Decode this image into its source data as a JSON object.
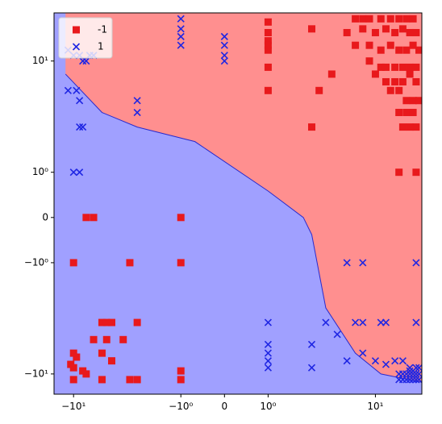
{
  "chart_data": {
    "type": "scatter",
    "subtype": "classifier-decision-regions",
    "xscale": "symlog",
    "yscale": "symlog",
    "xlim": [
      -14,
      22
    ],
    "ylim": [
      -14,
      22
    ],
    "xticks": [
      {
        "value": -10,
        "label": "−10¹"
      },
      {
        "value": -1,
        "label": "−10⁰"
      },
      {
        "value": 0,
        "label": "0"
      },
      {
        "value": 1,
        "label": "10⁰"
      },
      {
        "value": 10,
        "label": "10¹"
      }
    ],
    "yticks": [
      {
        "value": -10,
        "label": "−10¹"
      },
      {
        "value": -1,
        "label": "−10⁰"
      },
      {
        "value": 0,
        "label": "0"
      },
      {
        "value": 1,
        "label": "10⁰"
      },
      {
        "value": 10,
        "label": "10¹"
      }
    ],
    "regions": [
      {
        "class": "-1",
        "color": "#ff8f8f"
      },
      {
        "class": "1",
        "color": "#a0a0ff"
      }
    ],
    "decision_boundary": [
      [
        -11.5,
        8
      ],
      [
        -6,
        4
      ],
      [
        -3,
        3
      ],
      [
        -0.6,
        2.2
      ],
      [
        1,
        0.5
      ],
      [
        2.5,
        0
      ],
      [
        3,
        -0.3
      ],
      [
        4,
        -3
      ],
      [
        7,
        -7
      ],
      [
        11,
        -10
      ],
      [
        22,
        -11.5
      ]
    ],
    "legend": {
      "location": "upper-left",
      "entries": [
        {
          "label": "-1",
          "marker": "square",
          "color": "#e8191c"
        },
        {
          "label": "1",
          "marker": "x",
          "color": "#1f26e3"
        }
      ]
    },
    "series": [
      {
        "name": "-1",
        "marker": "square",
        "color": "#e8191c",
        "points": [
          [
            1,
            19
          ],
          [
            1,
            16
          ],
          [
            1,
            14
          ],
          [
            1,
            13
          ],
          [
            1,
            12
          ],
          [
            1,
            9
          ],
          [
            1,
            6
          ],
          [
            3,
            17
          ],
          [
            3,
            3
          ],
          [
            3.5,
            6
          ],
          [
            4.5,
            8
          ],
          [
            7,
            20
          ],
          [
            8,
            20
          ],
          [
            9,
            20
          ],
          [
            11,
            20
          ],
          [
            13,
            20
          ],
          [
            15,
            20
          ],
          [
            17,
            20
          ],
          [
            19,
            20
          ],
          [
            6,
            16
          ],
          [
            8,
            17
          ],
          [
            10,
            16
          ],
          [
            12,
            17
          ],
          [
            14,
            16
          ],
          [
            16,
            17
          ],
          [
            18,
            16
          ],
          [
            20,
            16
          ],
          [
            7,
            13
          ],
          [
            9,
            13
          ],
          [
            11,
            12
          ],
          [
            13,
            13
          ],
          [
            15,
            12
          ],
          [
            17,
            12
          ],
          [
            19,
            13
          ],
          [
            21,
            12
          ],
          [
            9,
            10
          ],
          [
            11,
            9
          ],
          [
            12,
            9
          ],
          [
            14,
            9
          ],
          [
            16,
            9
          ],
          [
            18,
            9
          ],
          [
            20,
            9
          ],
          [
            10,
            8
          ],
          [
            12,
            7
          ],
          [
            14,
            7
          ],
          [
            16,
            7
          ],
          [
            18,
            8
          ],
          [
            20,
            7
          ],
          [
            13,
            6
          ],
          [
            15,
            6
          ],
          [
            17,
            5
          ],
          [
            19,
            5
          ],
          [
            21,
            5
          ],
          [
            15,
            4
          ],
          [
            17,
            4
          ],
          [
            19,
            4
          ],
          [
            20,
            3
          ],
          [
            16,
            3
          ],
          [
            18,
            3
          ],
          [
            15,
            1
          ],
          [
            20,
            1
          ],
          [
            -8,
            0
          ],
          [
            -7,
            0
          ],
          [
            -1,
            0
          ],
          [
            -10,
            -1
          ],
          [
            -3.5,
            -1
          ],
          [
            -1,
            -1
          ],
          [
            -6,
            -4
          ],
          [
            -5.5,
            -4
          ],
          [
            -5,
            -4
          ],
          [
            -3,
            -4
          ],
          [
            -7,
            -5.5
          ],
          [
            -5.5,
            -5.5
          ],
          [
            -4,
            -5.5
          ],
          [
            -10,
            -7
          ],
          [
            -9.5,
            -7.5
          ],
          [
            -10.5,
            -8.5
          ],
          [
            -6,
            -7
          ],
          [
            -5,
            -8
          ],
          [
            -10,
            -9
          ],
          [
            -8,
            -10
          ],
          [
            -10,
            -11
          ],
          [
            -6,
            -11
          ],
          [
            -1,
            -11
          ],
          [
            -1,
            -9.5
          ],
          [
            -3.5,
            -11
          ],
          [
            -3,
            -11
          ],
          [
            -8.5,
            -9.5
          ]
        ]
      },
      {
        "name": "1",
        "marker": "x",
        "color": "#1f26e3",
        "points": [
          [
            -10,
            11
          ],
          [
            -9,
            11
          ],
          [
            -8.5,
            10
          ],
          [
            -8,
            10
          ],
          [
            -11,
            12
          ],
          [
            -7.5,
            11
          ],
          [
            -7,
            11
          ],
          [
            -11,
            6
          ],
          [
            -9.5,
            6
          ],
          [
            -9,
            5
          ],
          [
            -9,
            3
          ],
          [
            -8.5,
            3
          ],
          [
            -3,
            5
          ],
          [
            -3,
            4
          ],
          [
            -1,
            20
          ],
          [
            -1,
            17
          ],
          [
            -1,
            15
          ],
          [
            -1,
            13
          ],
          [
            0,
            15
          ],
          [
            0,
            13
          ],
          [
            0,
            11
          ],
          [
            0,
            10
          ],
          [
            -10,
            1
          ],
          [
            -9,
            1
          ],
          [
            6,
            -1
          ],
          [
            8,
            -1
          ],
          [
            20,
            -1
          ],
          [
            1,
            -4
          ],
          [
            4,
            -4
          ],
          [
            7,
            -4
          ],
          [
            8,
            -4
          ],
          [
            11,
            -4
          ],
          [
            12,
            -4
          ],
          [
            20,
            -4
          ],
          [
            1,
            -6
          ],
          [
            1,
            -7
          ],
          [
            1,
            -8
          ],
          [
            1,
            -9
          ],
          [
            3,
            -6
          ],
          [
            3,
            -9
          ],
          [
            5,
            -5
          ],
          [
            6,
            -8
          ],
          [
            8,
            -7
          ],
          [
            10,
            -8
          ],
          [
            12,
            -8.5
          ],
          [
            14,
            -8
          ],
          [
            16,
            -8
          ],
          [
            18,
            -9
          ],
          [
            15,
            -10
          ],
          [
            16,
            -10
          ],
          [
            17,
            -10
          ],
          [
            18,
            -10
          ],
          [
            19,
            -10
          ],
          [
            20,
            -10
          ],
          [
            21,
            -10
          ],
          [
            15,
            -11
          ],
          [
            16,
            -11
          ],
          [
            17,
            -11
          ],
          [
            18,
            -11
          ],
          [
            19,
            -11
          ],
          [
            20,
            -11
          ],
          [
            21,
            -11
          ],
          [
            18,
            -9.5
          ],
          [
            19,
            -9.5
          ],
          [
            20,
            -9
          ],
          [
            21,
            -9
          ]
        ]
      }
    ]
  }
}
